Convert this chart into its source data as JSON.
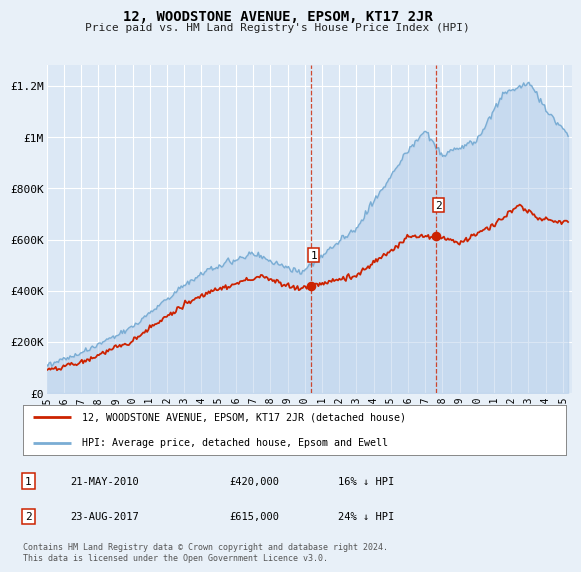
{
  "title": "12, WOODSTONE AVENUE, EPSOM, KT17 2JR",
  "subtitle": "Price paid vs. HM Land Registry's House Price Index (HPI)",
  "ylabel_ticks": [
    "£0",
    "£200K",
    "£400K",
    "£600K",
    "£800K",
    "£1M",
    "£1.2M"
  ],
  "ytick_values": [
    0,
    200000,
    400000,
    600000,
    800000,
    1000000,
    1200000
  ],
  "ylim": [
    0,
    1280000
  ],
  "xlim_start": 1995.0,
  "xlim_end": 2025.5,
  "bg_color": "#e8f0f8",
  "plot_bg_color": "#dce8f5",
  "grid_color": "#ffffff",
  "hpi_color": "#7aadd4",
  "hpi_fill_color": "#aec9e8",
  "price_color": "#cc2200",
  "sale1_x": 2010.38,
  "sale1_y": 420000,
  "sale1_label": "1",
  "sale1_date": "21-MAY-2010",
  "sale1_price": "£420,000",
  "sale1_pct": "16% ↓ HPI",
  "sale2_x": 2017.64,
  "sale2_y": 615000,
  "sale2_label": "2",
  "sale2_date": "23-AUG-2017",
  "sale2_price": "£615,000",
  "sale2_pct": "24% ↓ HPI",
  "legend_line1": "12, WOODSTONE AVENUE, EPSOM, KT17 2JR (detached house)",
  "legend_line2": "HPI: Average price, detached house, Epsom and Ewell",
  "footer": "Contains HM Land Registry data © Crown copyright and database right 2024.\nThis data is licensed under the Open Government Licence v3.0."
}
